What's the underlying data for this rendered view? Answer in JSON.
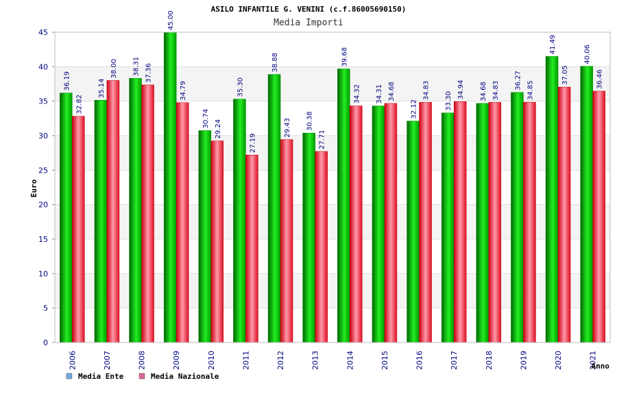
{
  "chart_data": {
    "type": "bar",
    "title": "ASILO INFANTILE G. VENINI (c.f.86005690150)",
    "subtitle": "Media Importi",
    "ylabel": "Euro",
    "xlabel": "Anno",
    "ylim": [
      0,
      45
    ],
    "yticks": [
      "0",
      "5",
      "10",
      "15",
      "20",
      "25",
      "30",
      "35",
      "40",
      "45"
    ],
    "grid": true,
    "legend_position": "bottom-left",
    "categories": [
      "2006",
      "2007",
      "2008",
      "2009",
      "2010",
      "2011",
      "2012",
      "2013",
      "2014",
      "2015",
      "2016",
      "2017",
      "2018",
      "2019",
      "2020",
      "2021"
    ],
    "series": [
      {
        "name": "Media Ente",
        "values": [
          36.19,
          35.14,
          38.31,
          45.0,
          30.74,
          35.3,
          38.88,
          30.38,
          39.68,
          34.31,
          32.12,
          33.3,
          34.68,
          36.27,
          41.49,
          40.06
        ],
        "labels": [
          "36.19",
          "35.14",
          "38.31",
          "45.00",
          "30.74",
          "35.30",
          "38.88",
          "30.38",
          "39.68",
          "34.31",
          "32.12",
          "33.30",
          "34.68",
          "36.27",
          "41.49",
          "40.06"
        ],
        "color": "#00cc00",
        "legend_color": "#6fa8dc"
      },
      {
        "name": "Media Nazionale",
        "values": [
          32.82,
          38.0,
          37.36,
          34.79,
          29.24,
          27.19,
          29.43,
          27.71,
          34.32,
          34.68,
          34.83,
          34.94,
          34.83,
          34.85,
          37.05,
          36.46
        ],
        "labels": [
          "32.82",
          "38.00",
          "37.36",
          "34.79",
          "29.24",
          "27.19",
          "29.43",
          "27.71",
          "34.32",
          "34.68",
          "34.83",
          "34.94",
          "34.83",
          "34.85",
          "37.05",
          "36.46"
        ],
        "color": "#ee2233",
        "legend_color": "#dd6699"
      }
    ]
  }
}
